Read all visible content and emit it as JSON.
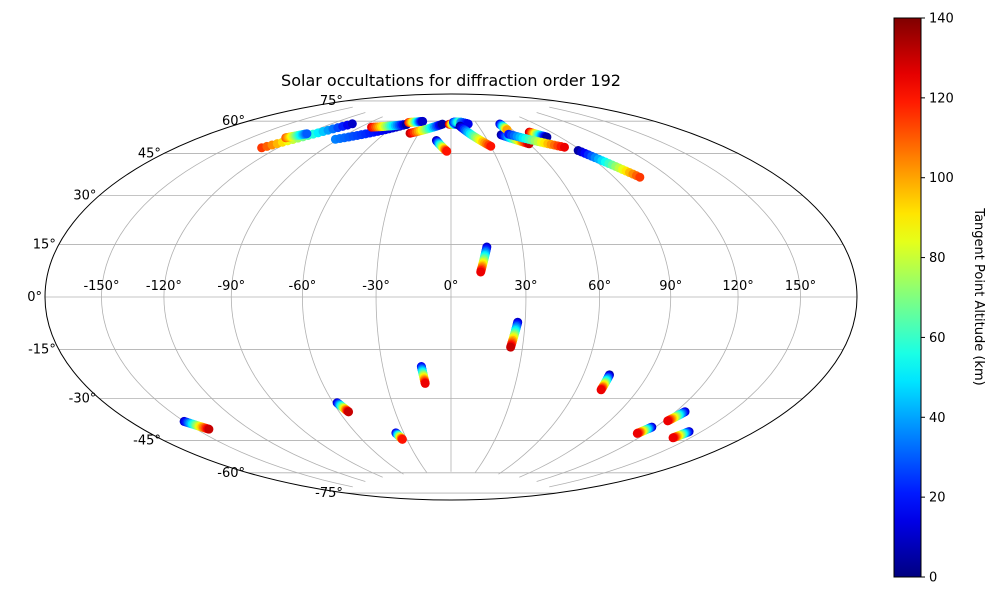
{
  "chart_data": {
    "type": "scatter",
    "title": "Solar occultations for diffraction order 192",
    "projection": "hammer",
    "grid": true,
    "lon_ticks": [
      -150,
      -120,
      -90,
      -60,
      -30,
      0,
      30,
      60,
      90,
      120,
      150
    ],
    "lon_tick_labels": [
      "-150°",
      "-120°",
      "-90°",
      "-60°",
      "-30°",
      "0°",
      "30°",
      "60°",
      "90°",
      "120°",
      "150°"
    ],
    "lat_ticks": [
      75,
      60,
      45,
      30,
      15,
      0,
      -15,
      -30,
      -45,
      -60,
      -75
    ],
    "lat_tick_labels": [
      "75°",
      "60°",
      "45°",
      "30°",
      "15°",
      "0°",
      "-15°",
      "-30°",
      "-45°",
      "-60°",
      "-75°"
    ],
    "colorbar": {
      "label": "Tangent Point Altitude (km)",
      "colormap": "jet",
      "range": [
        0,
        140
      ],
      "ticks": [
        0,
        20,
        40,
        60,
        80,
        100,
        120,
        140
      ],
      "tick_labels": [
        "0",
        "20",
        "40",
        "60",
        "80",
        "100",
        "120",
        "140"
      ]
    },
    "tracks": [
      {
        "start": [
          -130,
          55
        ],
        "end": [
          -103,
          70
        ],
        "alt_start": 115,
        "alt_end": 10
      },
      {
        "start": [
          -128,
          60
        ],
        "end": [
          -120,
          63
        ],
        "alt_start": 110,
        "alt_end": 30
      },
      {
        "start": [
          -92,
          63
        ],
        "end": [
          -50,
          73
        ],
        "alt_start": 35,
        "alt_end": 5
      },
      {
        "start": [
          -80,
          70
        ],
        "end": [
          -50,
          73
        ],
        "alt_start": 125,
        "alt_end": 5
      },
      {
        "start": [
          -50,
          74
        ],
        "end": [
          -35,
          75
        ],
        "alt_start": 120,
        "alt_end": 10
      },
      {
        "start": [
          -38,
          69
        ],
        "end": [
          -10,
          74
        ],
        "alt_start": 130,
        "alt_end": 5
      },
      {
        "start": [
          -12,
          66
        ],
        "end": [
          -3,
          61
        ],
        "alt_start": 5,
        "alt_end": 120
      },
      {
        "start": [
          -2,
          74
        ],
        "end": [
          8,
          74
        ],
        "alt_start": 130,
        "alt_end": 5
      },
      {
        "start": [
          3,
          75
        ],
        "end": [
          10,
          75
        ],
        "alt_start": 20,
        "alt_end": 60
      },
      {
        "start": [
          12,
          75
        ],
        "end": [
          20,
          74
        ],
        "alt_start": 40,
        "alt_end": 15
      },
      {
        "start": [
          10,
          73
        ],
        "end": [
          30,
          63
        ],
        "alt_start": 5,
        "alt_end": 120
      },
      {
        "start": [
          45,
          68
        ],
        "end": [
          60,
          63
        ],
        "alt_start": 5,
        "alt_end": 130
      },
      {
        "start": [
          55,
          73
        ],
        "end": [
          55,
          70
        ],
        "alt_start": 10,
        "alt_end": 100
      },
      {
        "start": [
          72,
          68
        ],
        "end": [
          80,
          65
        ],
        "alt_start": 130,
        "alt_end": 5
      },
      {
        "start": [
          52,
          68
        ],
        "end": [
          82,
          60
        ],
        "alt_start": 20,
        "alt_end": 125
      },
      {
        "start": [
          88,
          58
        ],
        "end": [
          104,
          45
        ],
        "alt_start": 5,
        "alt_end": 115
      },
      {
        "start": [
          15,
          20
        ],
        "end": [
          12,
          10
        ],
        "alt_start": 10,
        "alt_end": 125
      },
      {
        "start": [
          27,
          -10
        ],
        "end": [
          25,
          -20
        ],
        "alt_start": 10,
        "alt_end": 130
      },
      {
        "start": [
          -13,
          -28
        ],
        "end": [
          -12,
          -35
        ],
        "alt_start": 15,
        "alt_end": 125
      },
      {
        "start": [
          72,
          -30
        ],
        "end": [
          72,
          -36
        ],
        "alt_start": 5,
        "alt_end": 125
      },
      {
        "start": [
          -150,
          -42
        ],
        "end": [
          -143,
          -46
        ],
        "alt_start": 10,
        "alt_end": 130
      },
      {
        "start": [
          -58,
          -42
        ],
        "end": [
          -55,
          -46
        ],
        "alt_start": 10,
        "alt_end": 130
      },
      {
        "start": [
          -35,
          -56
        ],
        "end": [
          -33,
          -59
        ],
        "alt_start": 10,
        "alt_end": 120
      },
      {
        "start": [
          125,
          -41
        ],
        "end": [
          122,
          -45
        ],
        "alt_start": 10,
        "alt_end": 125
      },
      {
        "start": [
          118,
          -48
        ],
        "end": [
          115,
          -51
        ],
        "alt_start": 10,
        "alt_end": 125
      },
      {
        "start": [
          143,
          -47
        ],
        "end": [
          140,
          -50
        ],
        "alt_start": 10,
        "alt_end": 125
      }
    ]
  }
}
